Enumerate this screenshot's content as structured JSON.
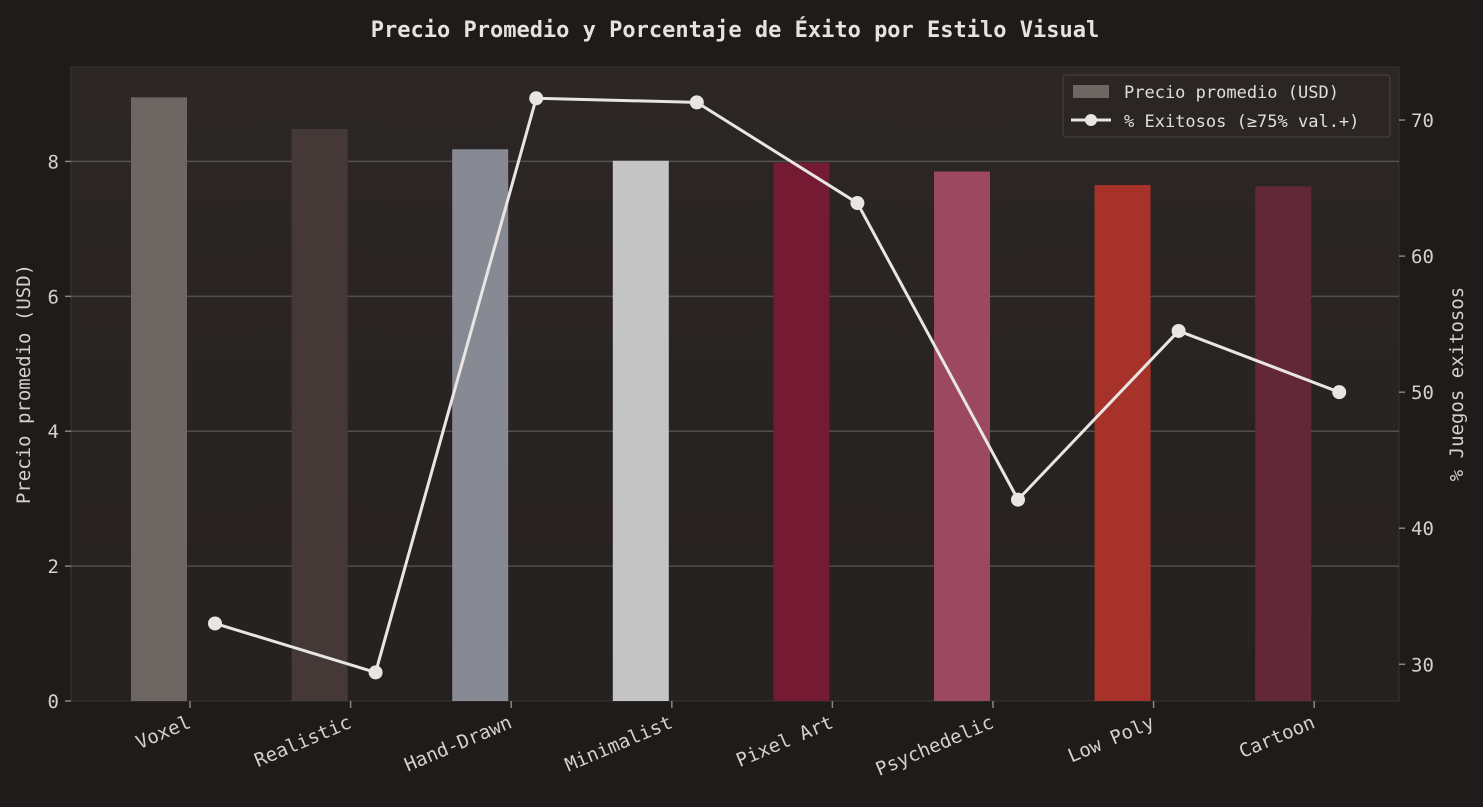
{
  "chart_data": {
    "type": "bar",
    "title": "Precio Promedio y Porcentaje de Éxito por Estilo Visual",
    "categories": [
      "Voxel",
      "Realistic",
      "Hand-Drawn",
      "Minimalist",
      "Pixel Art",
      "Psychedelic",
      "Low Poly",
      "Cartoon"
    ],
    "series": [
      {
        "name": "Precio promedio (USD)",
        "type": "bar",
        "axis": "left",
        "values": [
          8.95,
          8.48,
          8.18,
          8.01,
          7.98,
          7.85,
          7.65,
          7.63
        ],
        "colors": [
          "#6e6663",
          "#453938",
          "#888a93",
          "#c4c4c4",
          "#751a33",
          "#9c4862",
          "#a73229",
          "#632838"
        ]
      },
      {
        "name": "% Exitosos (≥75% val.+)",
        "type": "line",
        "axis": "right",
        "values": [
          33.0,
          29.4,
          71.6,
          71.3,
          63.9,
          42.1,
          54.5,
          50.0
        ],
        "color": "#e8e6e4"
      }
    ],
    "ylabel_left": "Precio promedio (USD)",
    "ylabel_right": "% Juegos exitosos",
    "ylim_left": [
      0,
      9.4
    ],
    "ylim_right": [
      27.3,
      73.9
    ],
    "yticks_left": [
      0,
      2,
      4,
      6,
      8
    ],
    "yticks_right": [
      30,
      40,
      50,
      60,
      70
    ],
    "grid": true,
    "legend_position": "top-right"
  }
}
